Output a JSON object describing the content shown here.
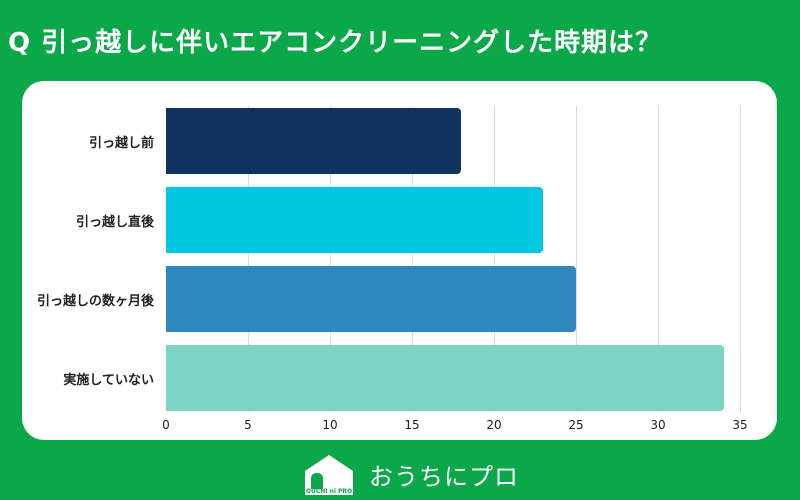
{
  "header": {
    "title": "Q 引っ越しに伴いエアコンクリーニングした時期は？"
  },
  "chart_data": {
    "type": "bar",
    "orientation": "horizontal",
    "title": "Q 引っ越しに伴いエアコンクリーニングした時期は？",
    "categories": [
      "引っ越し前",
      "引っ越し直後",
      "引っ越しの数ヶ月後",
      "実施していない"
    ],
    "values": [
      18,
      23,
      25,
      34
    ],
    "colors": [
      "#11335f",
      "#00c8e0",
      "#2e88bd",
      "#7bd4c4"
    ],
    "xlabel": "",
    "ylabel": "",
    "xlim": [
      0,
      35
    ],
    "xticks": [
      "0",
      "5",
      "10",
      "15",
      "20",
      "25",
      "30",
      "35"
    ],
    "grid": true,
    "legend": "none"
  },
  "footer": {
    "brand": "おうちにプロ",
    "brand_sub": "OUCHI ni PRO"
  }
}
